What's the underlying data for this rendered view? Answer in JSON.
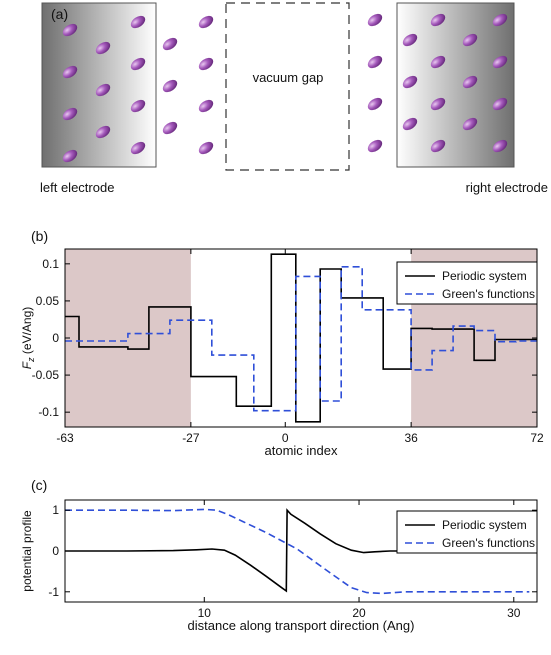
{
  "panel_a": {
    "label": "(a)",
    "gap_label": "vacuum gap",
    "left_label": "left electrode",
    "right_label": "right electrode",
    "atom_color": "#8a3fa0",
    "electrode_dark": "#6f6f6f"
  },
  "chart_data": [
    {
      "type": "line",
      "panel_label": "(b)",
      "xlabel": "atomic index",
      "ylabel": "F_z (eV/Ang)",
      "xlim": [
        -63,
        72
      ],
      "ylim": [
        -0.12,
        0.12
      ],
      "xticks": [
        -63,
        -27,
        0,
        36,
        72
      ],
      "yticks": [
        {
          "v": 0.1,
          "t": "0.1"
        },
        {
          "v": 0.05,
          "t": "0.05"
        },
        {
          "v": 0,
          "t": "0"
        },
        {
          "v": -0.05,
          "t": "-0.05"
        },
        {
          "v": -0.1,
          "t": "-0.1"
        }
      ],
      "shaded_regions": [
        [
          -63,
          -27
        ],
        [
          36,
          72
        ]
      ],
      "shade_color": "#dcc8c8",
      "legend_position": "top-right",
      "series": [
        {
          "name": "Periodic system",
          "color": "#000000",
          "style": "solid",
          "x": [
            -63,
            -59,
            -59,
            -52,
            -52,
            -45,
            -45,
            -39,
            -39,
            -33,
            -33,
            -27,
            -27,
            -21,
            -21,
            -14,
            -14,
            -9,
            -9,
            -4,
            -4,
            3,
            3,
            10,
            10,
            16,
            16,
            22,
            22,
            28,
            28,
            36,
            36,
            42,
            42,
            48,
            48,
            54,
            54,
            60,
            60,
            66,
            66,
            72
          ],
          "y": [
            0.029,
            0.029,
            -0.012,
            -0.012,
            -0.012,
            -0.012,
            -0.015,
            -0.015,
            0.042,
            0.042,
            0.042,
            0.042,
            -0.052,
            -0.052,
            -0.052,
            -0.052,
            -0.092,
            -0.092,
            -0.092,
            -0.092,
            0.113,
            0.113,
            -0.113,
            -0.113,
            0.093,
            0.093,
            0.054,
            0.054,
            0.054,
            0.054,
            -0.042,
            -0.042,
            0.013,
            0.013,
            0.012,
            0.012,
            0.012,
            0.012,
            -0.03,
            -0.03,
            -0.002,
            -0.002,
            -0.002,
            -0.002
          ]
        },
        {
          "name": "Green's functions",
          "color": "#2f4fd8",
          "style": "dashed",
          "x": [
            -63,
            -52,
            -52,
            -45,
            -45,
            -39,
            -39,
            -33,
            -33,
            -27,
            -27,
            -21,
            -21,
            -14,
            -14,
            -9,
            -9,
            -4,
            -4,
            3,
            3,
            10,
            10,
            16,
            16,
            22,
            22,
            28,
            28,
            36,
            36,
            42,
            42,
            48,
            48,
            54,
            54,
            60,
            60,
            66,
            66,
            72
          ],
          "y": [
            -0.004,
            -0.004,
            -0.004,
            -0.004,
            0.006,
            0.006,
            0.006,
            0.006,
            0.024,
            0.024,
            0.024,
            0.024,
            -0.023,
            -0.023,
            -0.023,
            -0.023,
            -0.098,
            -0.098,
            -0.098,
            -0.098,
            0.083,
            0.083,
            -0.085,
            -0.085,
            0.096,
            0.096,
            0.038,
            0.038,
            0.038,
            0.038,
            -0.043,
            -0.043,
            -0.017,
            -0.017,
            0.016,
            0.016,
            0.01,
            0.01,
            -0.005,
            -0.005,
            -0.004,
            -0.004
          ]
        }
      ]
    },
    {
      "type": "line",
      "panel_label": "(c)",
      "xlabel": "distance along transport direction (Ang)",
      "ylabel": "potential  profile",
      "xlim": [
        1,
        31.5
      ],
      "ylim": [
        -1.25,
        1.25
      ],
      "xticks": [
        10,
        20,
        30
      ],
      "yticks": [
        {
          "v": 1,
          "t": "1"
        },
        {
          "v": 0,
          "t": "0"
        },
        {
          "v": -1,
          "t": "-1"
        }
      ],
      "legend_position": "top-right",
      "series": [
        {
          "name": "Periodic system",
          "color": "#000000",
          "style": "solid",
          "x": [
            1,
            5,
            8,
            9.5,
            10.5,
            11.3,
            12,
            13,
            14,
            15,
            15.3,
            15.35,
            15.6,
            16.5,
            17.5,
            18.5,
            19.5,
            20.3,
            21,
            22,
            25,
            31
          ],
          "y": [
            0,
            0,
            0.01,
            0.03,
            0.05,
            0.02,
            -0.1,
            -0.35,
            -0.62,
            -0.9,
            -0.98,
            1.0,
            0.9,
            0.68,
            0.42,
            0.18,
            0.02,
            -0.04,
            -0.02,
            0,
            0,
            0
          ]
        },
        {
          "name": "Green's functions",
          "color": "#2f4fd8",
          "style": "dashed",
          "x": [
            1,
            5,
            8,
            10,
            10.8,
            11.5,
            12.5,
            14,
            16,
            18,
            19.5,
            20.5,
            21.5,
            23,
            26,
            31
          ],
          "y": [
            1.0,
            1.0,
            0.99,
            1.02,
            1.0,
            0.9,
            0.72,
            0.45,
            0.05,
            -0.5,
            -0.9,
            -1.02,
            -1.04,
            -1.0,
            -1.0,
            -1.0
          ]
        }
      ]
    }
  ]
}
